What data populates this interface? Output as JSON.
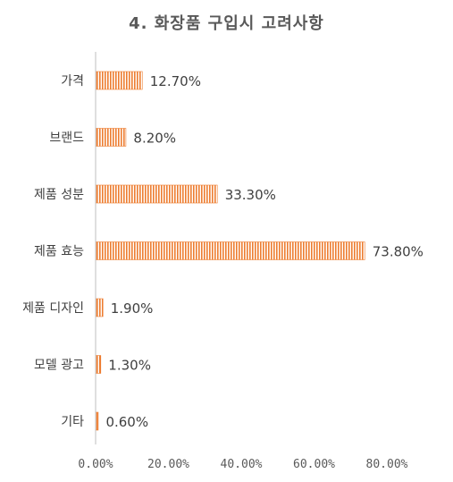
{
  "chart_data": {
    "type": "bar",
    "orientation": "horizontal",
    "title": "4. 화장품 구입시 고려사항",
    "categories": [
      "가격",
      "브랜드",
      "제품 성분",
      "제품 효능",
      "제품 디자인",
      "모델 광고",
      "기타"
    ],
    "values": [
      12.7,
      8.2,
      33.3,
      73.8,
      1.9,
      1.3,
      0.6
    ],
    "value_labels": [
      "12.70%",
      "8.20%",
      "33.30%",
      "73.80%",
      "1.90%",
      "1.30%",
      "0.60%"
    ],
    "xlim": [
      0,
      80
    ],
    "x_ticks": [
      0,
      20,
      40,
      60,
      80
    ],
    "x_tick_labels": [
      "0.00%",
      "20.00%",
      "40.00%",
      "60.00%",
      "80.00%"
    ],
    "bar_color": "#ED7D31",
    "bar_pattern": "vertical-stripes",
    "grid": false,
    "legend": "none"
  }
}
